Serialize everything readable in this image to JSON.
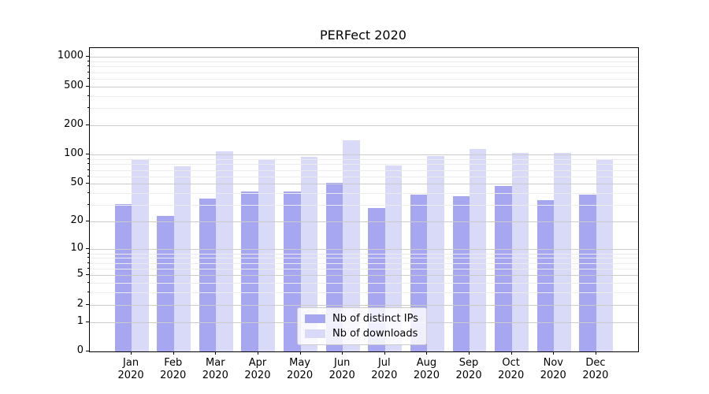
{
  "chart_data": {
    "type": "bar",
    "title": "PERFect 2020",
    "months": [
      "Jan",
      "Feb",
      "Mar",
      "Apr",
      "May",
      "Jun",
      "Jul",
      "Aug",
      "Sep",
      "Oct",
      "Nov",
      "Dec"
    ],
    "year": "2020",
    "series": [
      {
        "name": "Nb of distinct IPs",
        "color": "#a6a6f1",
        "values": [
          31,
          23,
          35,
          42,
          42,
          51,
          28,
          39,
          37,
          48,
          34,
          39
        ]
      },
      {
        "name": "Nb of downloads",
        "color": "#d9d9f8",
        "values": [
          88,
          76,
          108,
          88,
          96,
          142,
          77,
          98,
          115,
          105,
          105,
          88
        ]
      }
    ],
    "yscale": "log10(value+1)",
    "yticks": [
      0,
      1,
      2,
      5,
      10,
      20,
      50,
      100,
      200,
      500,
      1000
    ],
    "yticks_minor": [
      3,
      4,
      6,
      7,
      8,
      9,
      30,
      40,
      60,
      70,
      80,
      90,
      300,
      400,
      600,
      700,
      800,
      900
    ],
    "ylim": [
      0,
      1236
    ],
    "xlim": [
      -0.99,
      11.99
    ],
    "bar_width_units": 0.4,
    "grid": true,
    "legend_position": "lower center",
    "colors": {
      "grid_major": "#cbcbcb",
      "grid_minor": "#ececec",
      "axis": "#000000"
    }
  }
}
